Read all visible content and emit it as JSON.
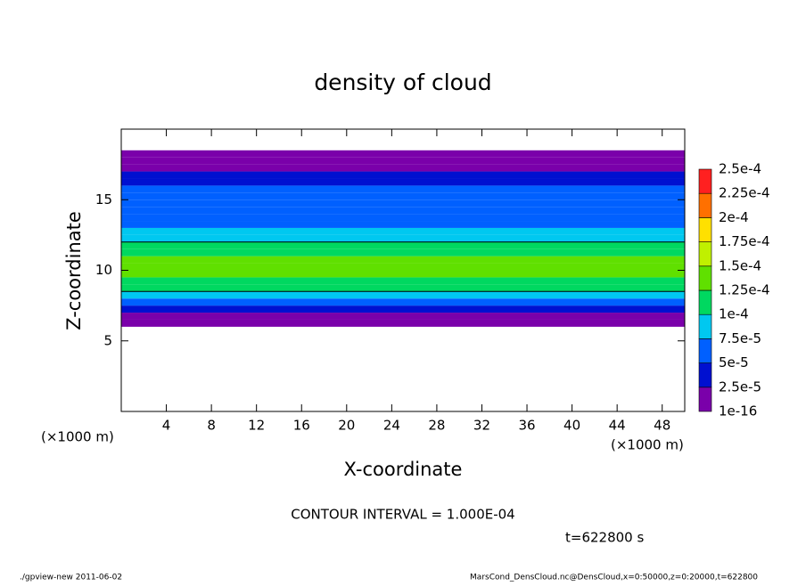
{
  "chart_data": {
    "type": "contour",
    "title": "density of cloud",
    "x_label": "X-coordinate",
    "y_label": "Z-coordinate",
    "x_unit": "(×1000 m)",
    "contour_note": "CONTOUR INTERVAL = 1.000E-04",
    "time_note": "t=622800 s",
    "footer_left": "./gpview-new  2011-06-02",
    "footer_right": "MarsCond_DensCloud.nc@DensCloud,x=0:50000,z=0:20000,t=622800",
    "xlim": [
      0,
      50
    ],
    "xticks": [
      4,
      8,
      12,
      16,
      20,
      24,
      28,
      32,
      36,
      40,
      44,
      48
    ],
    "ylim": [
      0,
      20
    ],
    "yticks": [
      5,
      10,
      15
    ],
    "contour_level": 0.0001,
    "z_bins": [
      6,
      6.5,
      7,
      7.5,
      8,
      8.5,
      9,
      9.5,
      10,
      10.5,
      11,
      11.5,
      12,
      12.5,
      13,
      13.5,
      14,
      14.5,
      15,
      15.5,
      16,
      16.5,
      17,
      17.5,
      18,
      18.5
    ],
    "values": [
      1e-05,
      1.5e-05,
      3e-05,
      6e-05,
      9e-05,
      0.00011,
      0.00012,
      0.00013,
      0.000135,
      0.00013,
      0.00012,
      0.000105,
      9e-05,
      8e-05,
      7e-05,
      6.5e-05,
      6e-05,
      5.5e-05,
      5.5e-05,
      5e-05,
      4e-05,
      3e-05,
      2e-05,
      1e-05,
      1e-05
    ],
    "levels": [
      {
        "value": 1e-16,
        "label": "1e-16"
      },
      {
        "value": 2.5e-05,
        "label": "2.5e-5"
      },
      {
        "value": 5e-05,
        "label": "5e-5"
      },
      {
        "value": 7.5e-05,
        "label": "7.5e-5"
      },
      {
        "value": 0.0001,
        "label": "1e-4"
      },
      {
        "value": 0.000125,
        "label": "1.25e-4"
      },
      {
        "value": 0.00015,
        "label": "1.5e-4"
      },
      {
        "value": 0.000175,
        "label": "1.75e-4"
      },
      {
        "value": 0.0002,
        "label": "2e-4"
      },
      {
        "value": 0.000225,
        "label": "2.25e-4"
      },
      {
        "value": 0.00025,
        "label": "2.5e-4"
      }
    ],
    "colors": [
      "#7a00aa",
      "#0010d0",
      "#0060ff",
      "#00c8f0",
      "#00d860",
      "#60e000",
      "#c0f000",
      "#ffe000",
      "#ff7000",
      "#ff2020"
    ]
  }
}
